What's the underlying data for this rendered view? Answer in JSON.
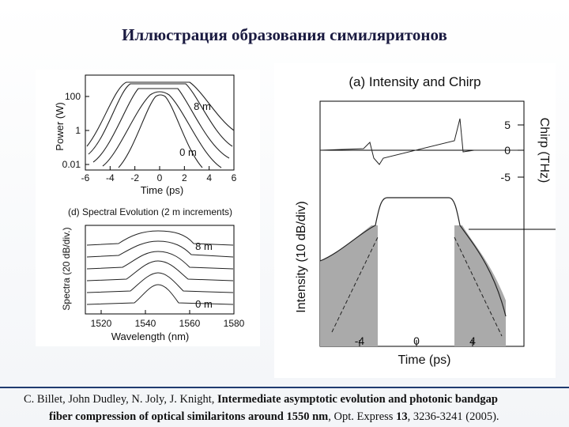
{
  "title": "Иллюстрация образования симиляритонов",
  "figure_left": {
    "top_panel": {
      "y_label": "Power (W)",
      "y_ticks": [
        100,
        1,
        0.01
      ],
      "x_ticks": [
        -6,
        -4,
        -2,
        0,
        2,
        4,
        6
      ],
      "x_label": "Time (ps)",
      "labels": [
        "8 m",
        "0 m"
      ]
    },
    "bottom_panel": {
      "caption": "(d) Spectral Evolution (2 m increments)",
      "y_label": "Spectra (20 dB/div.)",
      "labels": [
        "8 m",
        "0 m"
      ],
      "x_ticks": [
        1520,
        1540,
        1560,
        1580
      ],
      "x_label": "Wavelength (nm)"
    }
  },
  "figure_right": {
    "caption": "(a) Intensity and Chirp",
    "y_label": "Intensity (10 dB/div)",
    "y2_label": "Chirp (THz)",
    "y2_ticks": [
      5,
      0,
      -5
    ],
    "x_ticks": [
      -4,
      0,
      4
    ],
    "x_label": "Time (ps)"
  },
  "citation": {
    "authors": "C. Billet, John Dudley, N. Joly, J. Knight,",
    "title_line1": "Intermediate asymptotic evolution and photonic bandgap",
    "title_line2": "fiber compression of optical similaritons around 1550 nm",
    "journal": ", Opt. Express",
    "volume": "13",
    "pages": ", 3236-3241 (2005)."
  }
}
